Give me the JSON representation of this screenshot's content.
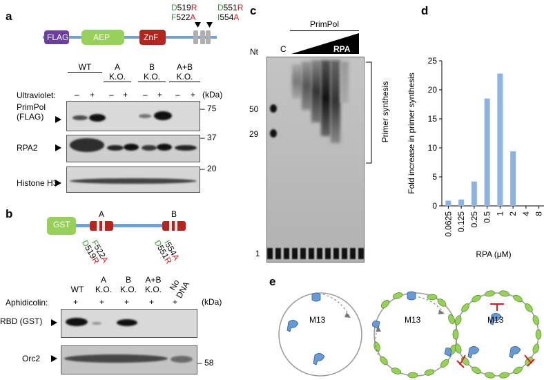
{
  "panels": {
    "a": "a",
    "b": "b",
    "c": "c",
    "d": "d",
    "e": "e"
  },
  "panel_a": {
    "domains": {
      "flag": "FLAG",
      "aep": "AEP",
      "znf": "ZnF"
    },
    "mut1_top": "519",
    "mut1_top_from": "D",
    "mut1_top_to": "R",
    "mut1_bot": "522",
    "mut1_bot_from": "F",
    "mut1_bot_to": "A",
    "mut2_top": "551",
    "mut2_top_from": "D",
    "mut2_top_to": "R",
    "mut2_bot": "554",
    "mut2_bot_from": "I",
    "mut2_bot_to": "A",
    "lanes": [
      {
        "l1": "",
        "l2": "WT"
      },
      {
        "l1": "A",
        "l2": "K.O."
      },
      {
        "l1": "B",
        "l2": "K.O."
      },
      {
        "l1": "A+B",
        "l2": "K.O."
      }
    ],
    "uv_label": "Ultraviolet:",
    "minus": "–",
    "plus": "+",
    "kda": "(kDa)",
    "rows": [
      "PrimPol",
      "(FLAG)",
      "RPA2",
      "Histone H3"
    ],
    "markers": [
      "75",
      "37",
      "20"
    ]
  },
  "panel_b": {
    "gst": "GST",
    "siteA": "A",
    "siteB": "B",
    "mA1_from": "D",
    "mA1_num": "519",
    "mA1_to": "R",
    "mA2_from": "F",
    "mA2_num": "522",
    "mA2_to": "A",
    "mB1_from": "D",
    "mB1_num": "551",
    "mB1_to": "R",
    "mB2_from": "I",
    "mB2_num": "554",
    "mB2_to": "A",
    "lanes": [
      {
        "l1": "WT",
        "l2": ""
      },
      {
        "l1": "A",
        "l2": "K.O."
      },
      {
        "l1": "B",
        "l2": "K.O."
      },
      {
        "l1": "A+B",
        "l2": "K.O."
      }
    ],
    "nodna1": "No",
    "nodna2": "DNA",
    "aphid_label": "Aphidicolin:",
    "plus": "+",
    "kda": "(kDa)",
    "rows": [
      "RBD (GST)",
      "Orc2"
    ],
    "marker": "58"
  },
  "panel_c": {
    "primpol": "PrimPol",
    "nt": "Nt",
    "c": "C",
    "rpa": "RPA",
    "markers": [
      "50",
      "29",
      "1"
    ],
    "bracket_label": "Primer synthesis"
  },
  "panel_e": {
    "m13": "M13"
  },
  "chart_data": {
    "type": "bar",
    "categories": [
      "0.0625",
      "0.125",
      "0.25",
      "0.5",
      "1",
      "2",
      "4",
      "8"
    ],
    "values": [
      0.9,
      1.1,
      4.2,
      18.5,
      22.8,
      9.4,
      0,
      0
    ],
    "xlabel": "RPA (μM)",
    "ylabel": "Fold increase in primer synthesis",
    "ylim": [
      0,
      25
    ],
    "yticks": [
      "0",
      "5",
      "10",
      "15",
      "20",
      "25"
    ],
    "color": "#8db3e2"
  }
}
